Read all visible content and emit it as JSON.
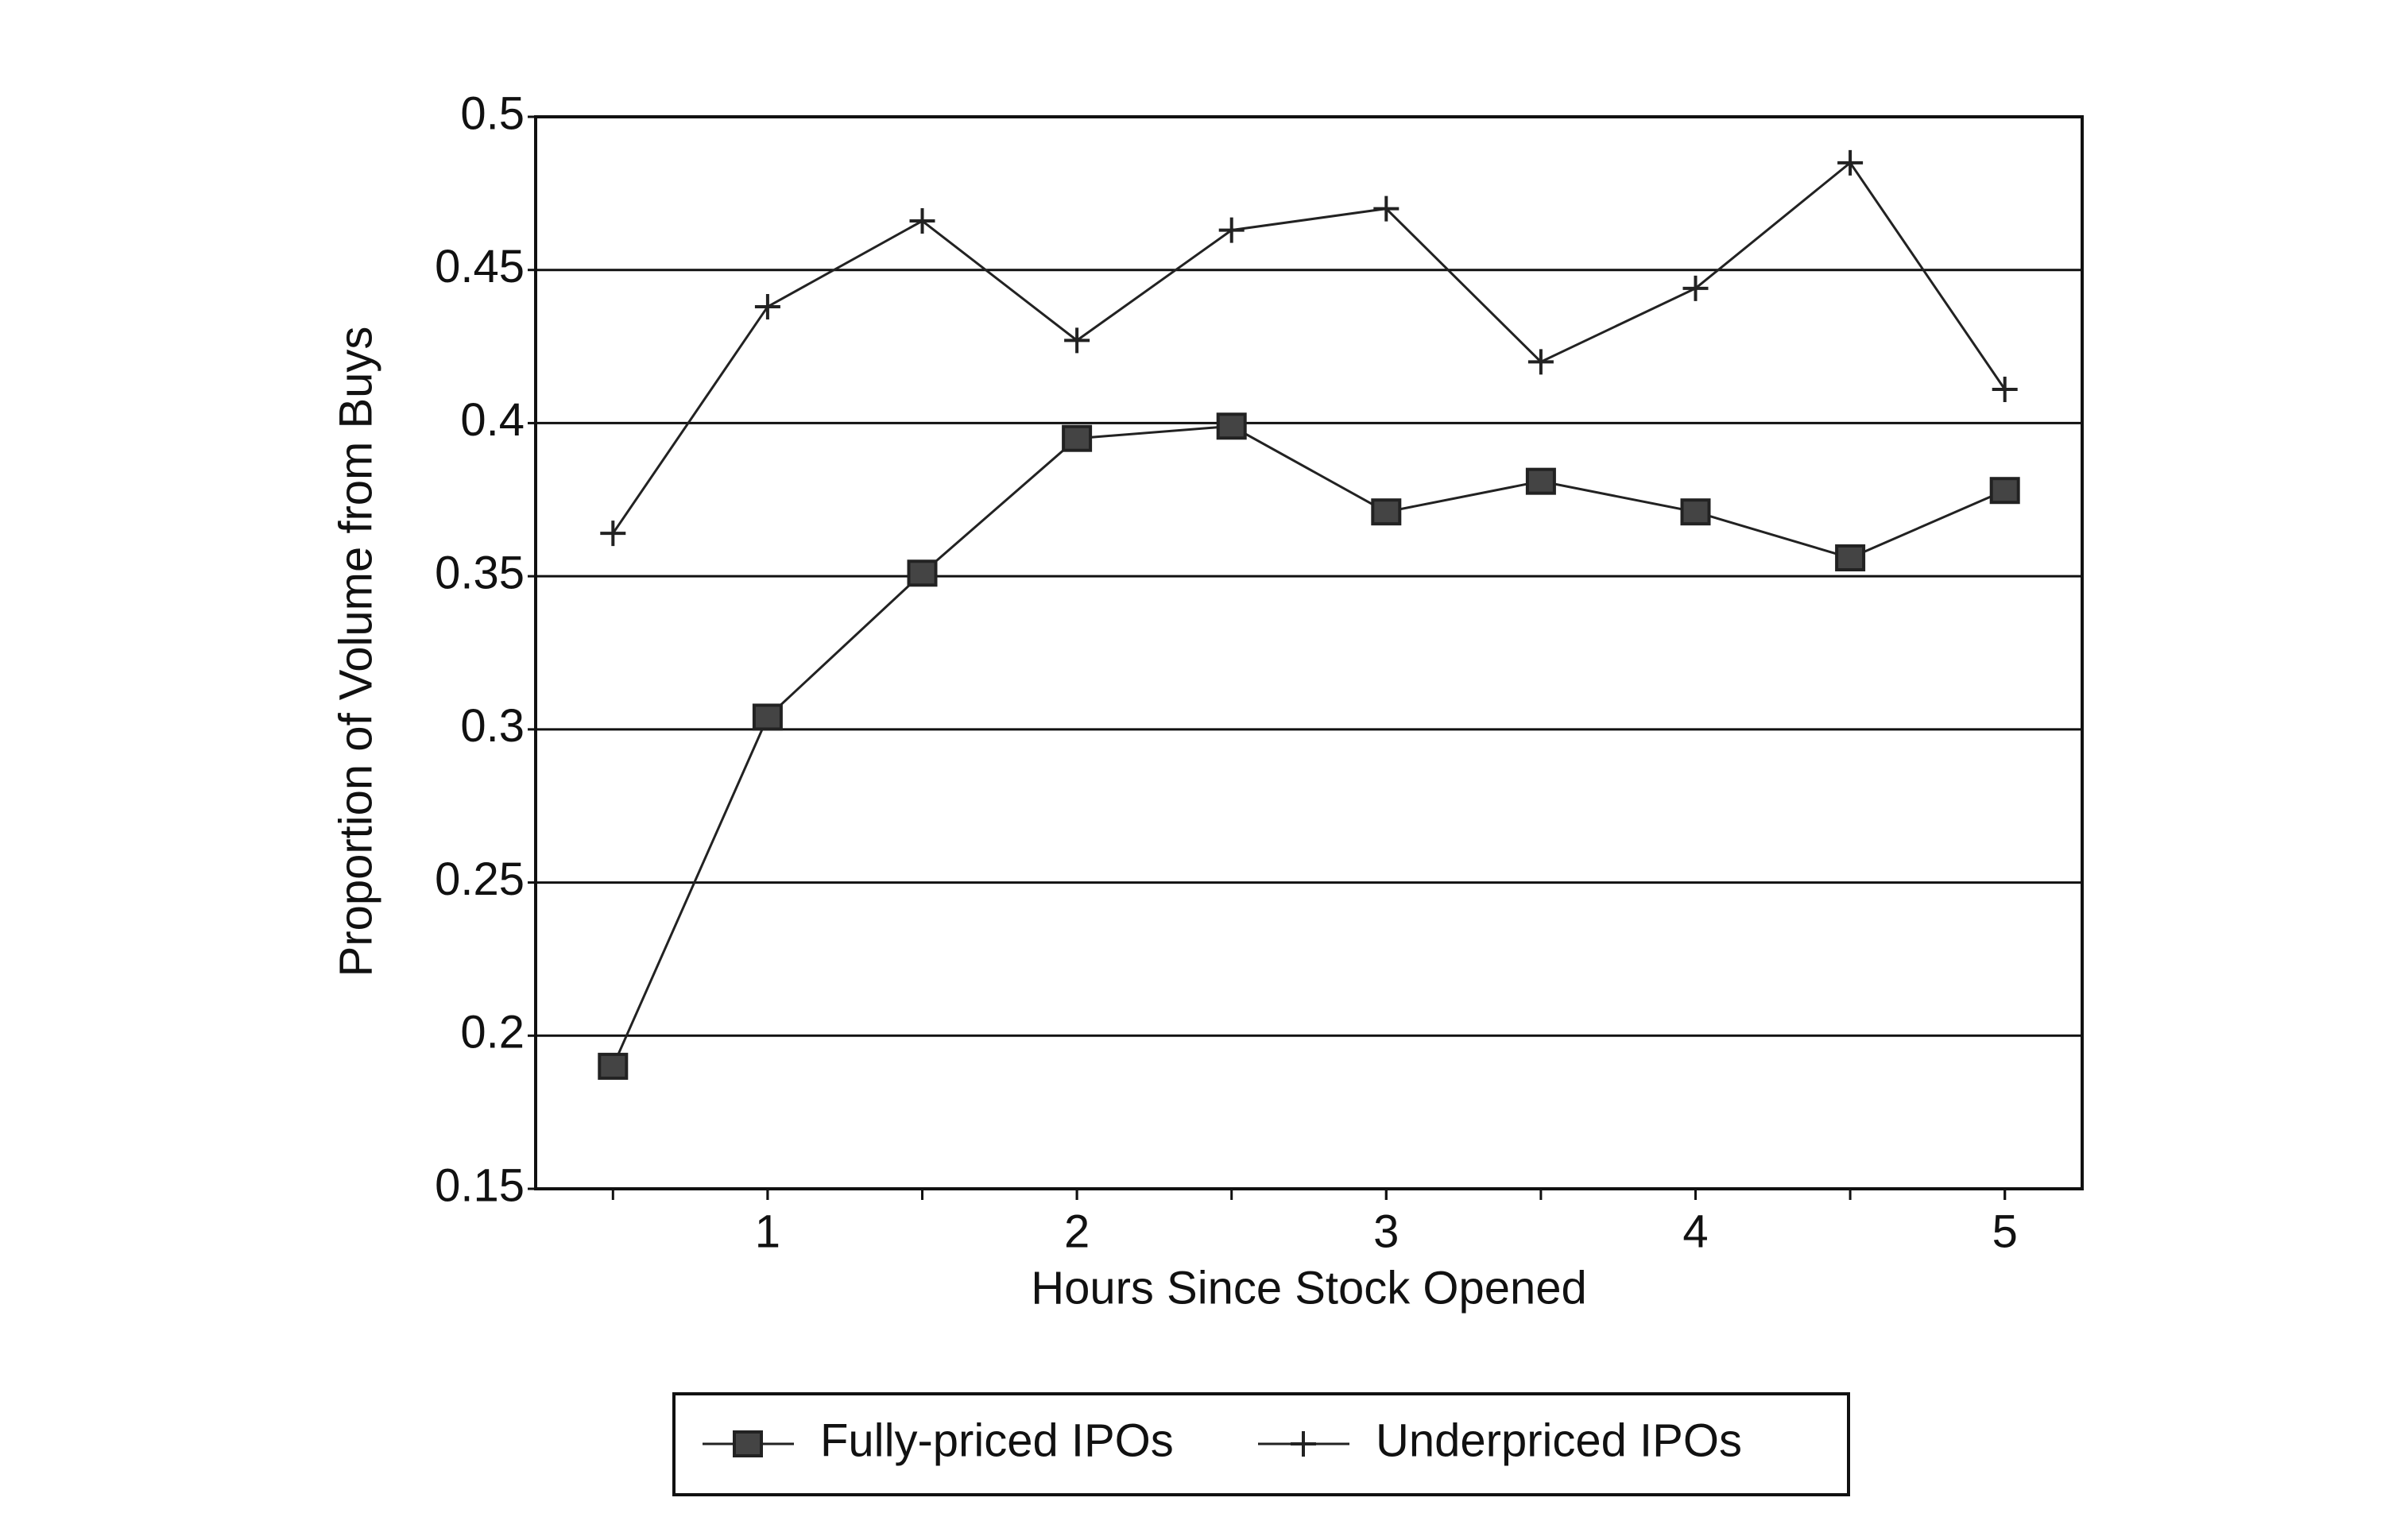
{
  "chart_data": {
    "type": "line",
    "x_label": "Hours Since Stock Opened",
    "y_label": "Proportion of Volume from Buys",
    "x": [
      0.5,
      1,
      1.5,
      2,
      2.5,
      3,
      3.5,
      4,
      4.5,
      5
    ],
    "series": [
      {
        "name": "Fully-priced IPOs",
        "color": "#222222",
        "marker": "square",
        "values": [
          0.19,
          0.304,
          0.351,
          0.395,
          0.399,
          0.371,
          0.381,
          0.371,
          0.356,
          0.378
        ]
      },
      {
        "name": "Underpriced IPOs",
        "color": "#222222",
        "marker": "plus",
        "values": [
          0.364,
          0.438,
          0.466,
          0.427,
          0.463,
          0.47,
          0.42,
          0.444,
          0.485,
          0.411
        ]
      }
    ],
    "xlim": [
      0.25,
      5.25
    ],
    "xticks": [
      1,
      2,
      3,
      4,
      5
    ],
    "ylim": [
      0.15,
      0.5
    ],
    "yticks": [
      0.15,
      0.2,
      0.25,
      0.3,
      0.35,
      0.4,
      0.45,
      0.5
    ],
    "grid": true,
    "legend": "bottom"
  }
}
